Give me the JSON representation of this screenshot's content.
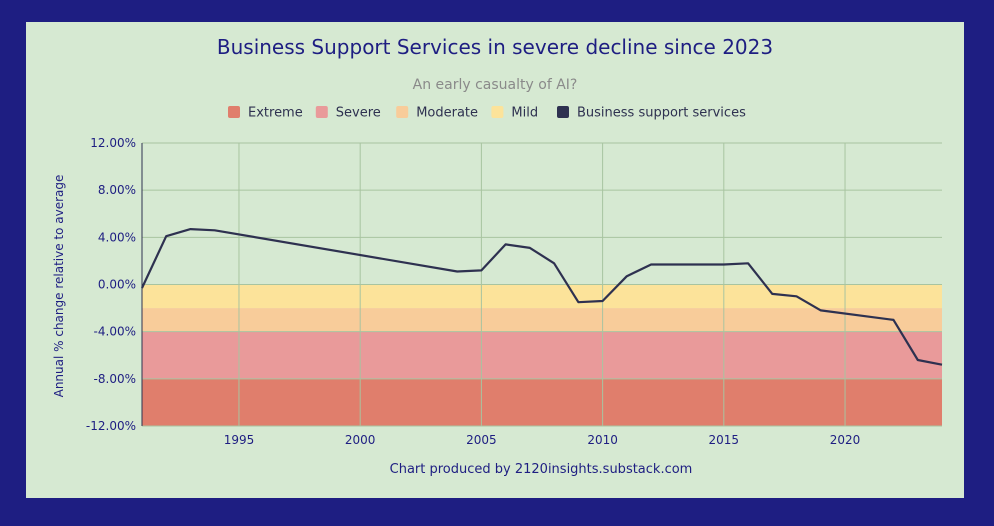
{
  "chart_data": {
    "type": "line",
    "title": "Business Support Services in severe decline since 2023",
    "subtitle": "An early casualty of AI?",
    "ylabel": "Annual % change relative to average",
    "xlabel": "",
    "footer": "Chart produced by 2120insights.substack.com",
    "xlim": [
      1991,
      2024
    ],
    "ylim": [
      -12,
      12
    ],
    "x_ticks": [
      1995,
      2000,
      2005,
      2010,
      2015,
      2020
    ],
    "y_ticks": [
      12,
      8,
      4,
      0,
      -4,
      -8,
      -12
    ],
    "y_tick_labels": [
      "12.00%",
      "8.00%",
      "4.00%",
      "0.00%",
      "-4.00%",
      "-8.00%",
      "-12.00%"
    ],
    "legend_position": "top-center",
    "bands": [
      {
        "name": "Extreme",
        "from": -12,
        "to": -8,
        "color": "#e07e6c"
      },
      {
        "name": "Severe",
        "from": -8,
        "to": -4,
        "color": "#e99a9a"
      },
      {
        "name": "Moderate",
        "from": -4,
        "to": -2,
        "color": "#f8cc9a"
      },
      {
        "name": "Mild",
        "from": -2,
        "to": 0,
        "color": "#fce39a"
      }
    ],
    "series": [
      {
        "name": "Business support services",
        "color": "#2e3150",
        "x": [
          1991,
          1992,
          1993,
          1994,
          2004,
          2005,
          2006,
          2007,
          2008,
          2009,
          2010,
          2011,
          2012,
          2015,
          2016,
          2017,
          2018,
          2019,
          2022,
          2023,
          2024
        ],
        "values": [
          -0.3,
          4.1,
          4.7,
          4.6,
          1.1,
          1.2,
          3.4,
          3.1,
          1.8,
          -1.5,
          -1.4,
          0.7,
          1.7,
          1.7,
          1.8,
          -0.8,
          -1.0,
          -2.2,
          -3.0,
          -6.4,
          -6.8
        ]
      }
    ]
  },
  "colors": {
    "title": "#1e1e82",
    "subtitle": "#8a8a8a",
    "grid": "#a8c4a0",
    "axis_text": "#1e1e82",
    "background": "#d6e9d2",
    "frame": "#1e1e82"
  }
}
